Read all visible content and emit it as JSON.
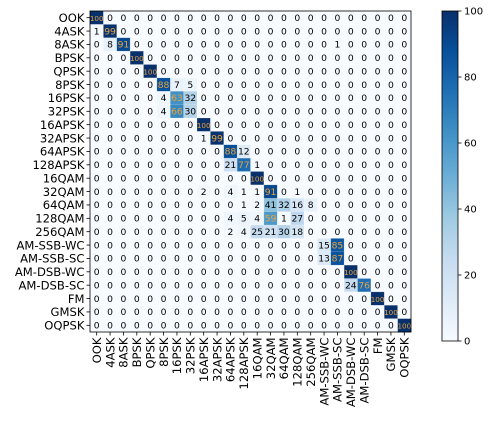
{
  "chart_data": {
    "type": "heatmap",
    "title": "",
    "xlabel": "",
    "ylabel": "",
    "classes": [
      "OOK",
      "4ASK",
      "8ASK",
      "BPSK",
      "QPSK",
      "8PSK",
      "16PSK",
      "32PSK",
      "16APSK",
      "32APSK",
      "64APSK",
      "128APSK",
      "16QAM",
      "32QAM",
      "64QAM",
      "128QAM",
      "256QAM",
      "AM-SSB-WC",
      "AM-SSB-SC",
      "AM-DSB-WC",
      "AM-DSB-SC",
      "FM",
      "GMSK",
      "OQPSK"
    ],
    "matrix": [
      [
        100,
        0,
        0,
        0,
        0,
        0,
        0,
        0,
        0,
        0,
        0,
        0,
        0,
        0,
        0,
        0,
        0,
        0,
        0,
        0,
        0,
        0,
        0,
        0
      ],
      [
        1,
        99,
        0,
        0,
        0,
        0,
        0,
        0,
        0,
        0,
        0,
        0,
        0,
        0,
        0,
        0,
        0,
        0,
        0,
        0,
        0,
        0,
        0,
        0
      ],
      [
        0,
        8,
        91,
        0,
        0,
        0,
        0,
        0,
        0,
        0,
        0,
        0,
        0,
        0,
        0,
        0,
        0,
        0,
        1,
        0,
        0,
        0,
        0,
        0
      ],
      [
        0,
        0,
        0,
        100,
        0,
        0,
        0,
        0,
        0,
        0,
        0,
        0,
        0,
        0,
        0,
        0,
        0,
        0,
        0,
        0,
        0,
        0,
        0,
        0
      ],
      [
        0,
        0,
        0,
        0,
        100,
        0,
        0,
        0,
        0,
        0,
        0,
        0,
        0,
        0,
        0,
        0,
        0,
        0,
        0,
        0,
        0,
        0,
        0,
        0
      ],
      [
        0,
        0,
        0,
        0,
        0,
        88,
        7,
        5,
        0,
        0,
        0,
        0,
        0,
        0,
        0,
        0,
        0,
        0,
        0,
        0,
        0,
        0,
        0,
        0
      ],
      [
        0,
        0,
        0,
        0,
        0,
        4,
        63,
        32,
        0,
        0,
        0,
        0,
        0,
        0,
        0,
        0,
        0,
        0,
        0,
        0,
        0,
        0,
        0,
        0
      ],
      [
        0,
        0,
        0,
        0,
        0,
        4,
        66,
        30,
        0,
        0,
        0,
        0,
        0,
        0,
        0,
        0,
        0,
        0,
        0,
        0,
        0,
        0,
        0,
        0
      ],
      [
        0,
        0,
        0,
        0,
        0,
        0,
        0,
        0,
        100,
        0,
        0,
        0,
        0,
        0,
        0,
        0,
        0,
        0,
        0,
        0,
        0,
        0,
        0,
        0
      ],
      [
        0,
        0,
        0,
        0,
        0,
        0,
        0,
        0,
        1,
        99,
        0,
        0,
        0,
        0,
        0,
        0,
        0,
        0,
        0,
        0,
        0,
        0,
        0,
        0
      ],
      [
        0,
        0,
        0,
        0,
        0,
        0,
        0,
        0,
        0,
        0,
        88,
        12,
        0,
        0,
        0,
        0,
        0,
        0,
        0,
        0,
        0,
        0,
        0,
        0
      ],
      [
        0,
        0,
        0,
        0,
        0,
        0,
        0,
        0,
        0,
        0,
        21,
        77,
        1,
        0,
        0,
        0,
        0,
        0,
        0,
        0,
        0,
        0,
        0,
        0
      ],
      [
        0,
        0,
        0,
        0,
        0,
        0,
        0,
        0,
        0,
        0,
        0,
        0,
        100,
        0,
        0,
        0,
        0,
        0,
        0,
        0,
        0,
        0,
        0,
        0
      ],
      [
        0,
        0,
        0,
        0,
        0,
        0,
        0,
        0,
        2,
        0,
        4,
        1,
        1,
        91,
        0,
        1,
        0,
        0,
        0,
        0,
        0,
        0,
        0,
        0
      ],
      [
        0,
        0,
        0,
        0,
        0,
        0,
        0,
        0,
        0,
        0,
        0,
        1,
        2,
        41,
        32,
        16,
        8,
        0,
        0,
        0,
        0,
        0,
        0,
        0
      ],
      [
        0,
        0,
        0,
        0,
        0,
        0,
        0,
        0,
        0,
        0,
        4,
        5,
        4,
        59,
        1,
        27,
        0,
        0,
        0,
        0,
        0,
        0,
        0,
        0
      ],
      [
        0,
        0,
        0,
        0,
        0,
        0,
        0,
        0,
        0,
        0,
        2,
        4,
        25,
        21,
        30,
        18,
        0,
        0,
        0,
        0,
        0,
        0,
        0,
        0
      ],
      [
        0,
        0,
        0,
        0,
        0,
        0,
        0,
        0,
        0,
        0,
        0,
        0,
        0,
        0,
        0,
        0,
        0,
        15,
        85,
        0,
        0,
        0,
        0,
        0
      ],
      [
        0,
        0,
        0,
        0,
        0,
        0,
        0,
        0,
        0,
        0,
        0,
        0,
        0,
        0,
        0,
        0,
        0,
        13,
        87,
        0,
        0,
        0,
        0,
        0
      ],
      [
        0,
        0,
        0,
        0,
        0,
        0,
        0,
        0,
        0,
        0,
        0,
        0,
        0,
        0,
        0,
        0,
        0,
        0,
        0,
        100,
        0,
        0,
        0,
        0
      ],
      [
        0,
        0,
        0,
        0,
        0,
        0,
        0,
        0,
        0,
        0,
        0,
        0,
        0,
        0,
        0,
        0,
        0,
        0,
        0,
        24,
        76,
        0,
        0,
        0
      ],
      [
        0,
        0,
        0,
        0,
        0,
        0,
        0,
        0,
        0,
        0,
        0,
        0,
        0,
        0,
        0,
        0,
        0,
        0,
        0,
        0,
        0,
        100,
        0,
        0
      ],
      [
        0,
        0,
        0,
        0,
        0,
        0,
        0,
        0,
        0,
        0,
        0,
        0,
        0,
        0,
        0,
        0,
        0,
        0,
        0,
        0,
        0,
        0,
        100,
        0
      ],
      [
        0,
        0,
        0,
        0,
        0,
        0,
        0,
        0,
        0,
        0,
        0,
        0,
        0,
        0,
        0,
        0,
        0,
        0,
        0,
        0,
        0,
        0,
        0,
        100
      ]
    ],
    "value_range": [
      0,
      100
    ],
    "colorbar_ticks": [
      0,
      20,
      40,
      60,
      80,
      100
    ],
    "colormap": "Blues",
    "colormap_colors": [
      "#f7fbff",
      "#deebf7",
      "#c6dbef",
      "#9ecae1",
      "#6baed6",
      "#4292c6",
      "#2171b5",
      "#08519c",
      "#08306b"
    ],
    "cell_text_colors": {
      "low": "#000000",
      "high": "#e8a33c"
    },
    "grid": true,
    "legend": "colorbar-right"
  }
}
